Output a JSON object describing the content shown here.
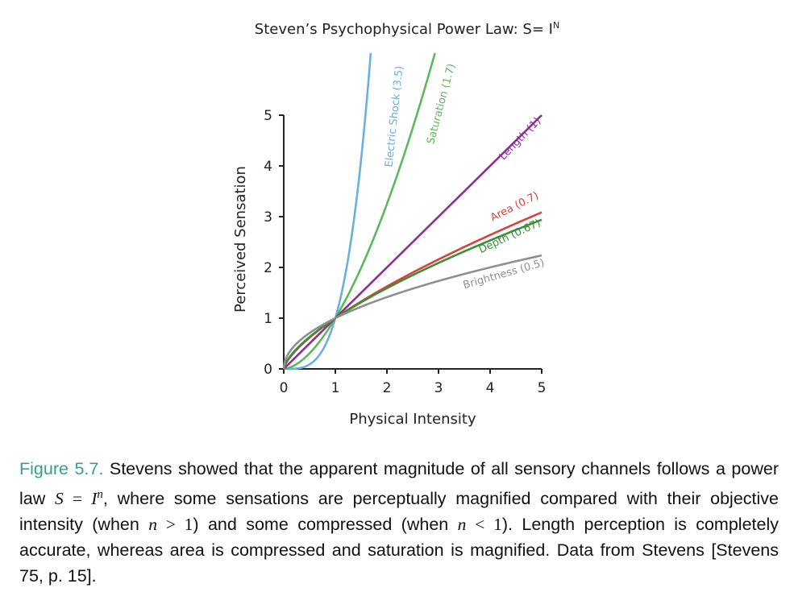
{
  "chart_data": {
    "type": "line",
    "title": "Steven’s Psychophysical Power Law: S= I",
    "title_sup": "N",
    "xlabel": "Physical Intensity",
    "ylabel": "Perceived Sensation",
    "xlim": [
      0,
      5
    ],
    "ylim": [
      0,
      5
    ],
    "xticks": [
      "0",
      "1",
      "2",
      "3",
      "4",
      "5"
    ],
    "yticks": [
      "0",
      "1",
      "2",
      "3",
      "4",
      "5"
    ],
    "grid": false,
    "series": [
      {
        "name": "Electric Shock (3.5)",
        "exponent": 3.5,
        "color": "#6ab0de"
      },
      {
        "name": "Saturation (1.7)",
        "exponent": 1.7,
        "color": "#5cb85c"
      },
      {
        "name": "Length (1)",
        "exponent": 1.0,
        "color": "#8e2c9a"
      },
      {
        "name": "Area (0.7)",
        "exponent": 0.7,
        "color": "#d9413c"
      },
      {
        "name": "Depth (0.67)",
        "exponent": 0.67,
        "color": "#3b8f3b"
      },
      {
        "name": "Brightness (0.5)",
        "exponent": 0.5,
        "color": "#8f8f8f"
      }
    ]
  },
  "caption": {
    "figure_label": "Figure 5.7.",
    "t1": " Stevens showed that the apparent magnitude of all sensory channels follows a power law ",
    "eq_S": "S",
    "eq_eq": " = ",
    "eq_I": "I",
    "eq_n": "n",
    "t2": ", where some sensations are perceptually magnified compared with their objective intensity (when ",
    "c1_n": "n",
    "c1_op": " > 1",
    "t3": ") and some compressed (when ",
    "c2_n": "n",
    "c2_op": " < 1",
    "t4": "). Length perception is completely accurate, whereas area is compressed and saturation is magnified. Data from Stevens [Stevens 75, p. 15]."
  }
}
